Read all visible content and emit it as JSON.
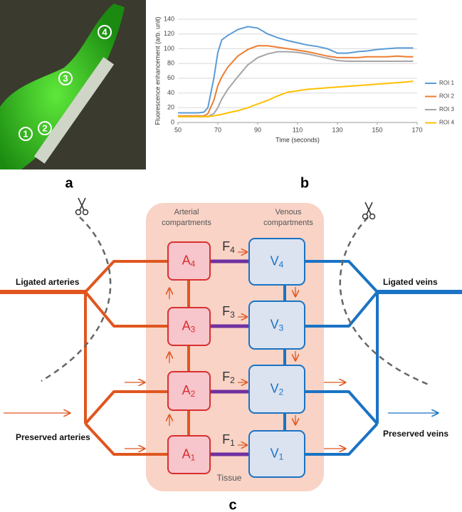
{
  "panel_labels": [
    "a",
    "b",
    "c"
  ],
  "photo": {
    "markers": [
      "1",
      "2",
      "3",
      "4"
    ]
  },
  "chart_data": {
    "type": "line",
    "y_label": "Fluorescence enhancement (arb. unit)",
    "x_label": "Time (seconds)",
    "x": [
      50,
      55,
      60,
      63,
      65,
      68,
      70,
      72,
      75,
      80,
      85,
      90,
      95,
      100,
      105,
      110,
      115,
      120,
      125,
      130,
      135,
      140,
      145,
      150,
      155,
      160,
      165,
      168
    ],
    "series": [
      {
        "name": "ROI 1",
        "color": "#5b9bd5",
        "values": [
          13,
          13,
          13,
          14,
          20,
          60,
          95,
          112,
          118,
          126,
          130,
          128,
          120,
          115,
          111,
          108,
          105,
          103,
          100,
          94,
          94,
          96,
          97,
          99,
          100,
          101,
          101,
          101
        ]
      },
      {
        "name": "ROI 2",
        "color": "#ed7d31",
        "values": [
          9,
          9,
          9,
          9,
          12,
          30,
          50,
          62,
          75,
          90,
          99,
          104,
          104,
          102,
          100,
          98,
          96,
          93,
          90,
          88,
          88,
          88,
          89,
          89,
          89,
          90,
          89,
          89
        ]
      },
      {
        "name": "ROI 3",
        "color": "#a5a5a5",
        "values": [
          8,
          8,
          8,
          8,
          8,
          12,
          20,
          32,
          45,
          62,
          78,
          88,
          93,
          96,
          96,
          95,
          93,
          90,
          87,
          84,
          83,
          83,
          83,
          83,
          83,
          83,
          83,
          83
        ]
      },
      {
        "name": "ROI 4",
        "color": "#ffc000",
        "values": [
          8,
          8,
          8,
          8,
          8,
          9,
          10,
          11,
          13,
          16,
          20,
          25,
          30,
          36,
          41,
          43,
          45,
          46,
          47,
          48,
          49,
          50,
          51,
          52,
          53,
          54,
          55,
          56
        ]
      }
    ],
    "xlim": [
      50,
      170
    ],
    "xticks": [
      50,
      70,
      90,
      110,
      130,
      150,
      170
    ],
    "ylim": [
      0,
      140
    ],
    "yticks": [
      0,
      20,
      40,
      60,
      80,
      100,
      120,
      140
    ],
    "grid": true,
    "legend": "right"
  },
  "diagram": {
    "arterial_title": [
      "Arterial",
      "compartments"
    ],
    "venous_title": [
      "Venous",
      "compartments"
    ],
    "ligated_arteries": "Ligated arteries",
    "preserved_arteries": "Preserved arteries",
    "ligated_veins": "Ligated veins",
    "preserved_veins": "Preserved veins",
    "tissue": "Tissue",
    "arterial_nodes": [
      {
        "label": "A",
        "sub": "4"
      },
      {
        "label": "A",
        "sub": "3"
      },
      {
        "label": "A",
        "sub": "2"
      },
      {
        "label": "A",
        "sub": "1"
      }
    ],
    "venous_nodes": [
      {
        "label": "V",
        "sub": "4"
      },
      {
        "label": "V",
        "sub": "3"
      },
      {
        "label": "V",
        "sub": "2"
      },
      {
        "label": "V",
        "sub": "1"
      }
    ],
    "flows": [
      {
        "label": "F",
        "sub": "4"
      },
      {
        "label": "F",
        "sub": "3"
      },
      {
        "label": "F",
        "sub": "2"
      },
      {
        "label": "F",
        "sub": "1"
      }
    ]
  }
}
